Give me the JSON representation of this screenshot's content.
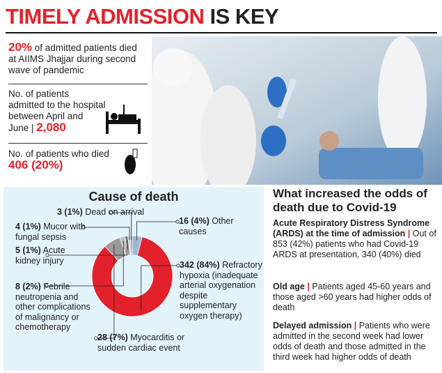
{
  "header": {
    "title_red": "TIMELY ADMISSION",
    "title_black": "IS KEY"
  },
  "stats": [
    {
      "value": "20%",
      "text": "of admitted patients died at AIIMS Jhajjar during second wave of pandemic"
    },
    {
      "text": "No. of patients admitted to the hospital between April and June",
      "value": "2,080"
    },
    {
      "text": "No. of patients who died",
      "value": "406 (20%)"
    }
  ],
  "chart_data": {
    "type": "donut",
    "title": "Cause of death",
    "categories": [
      "Other causes",
      "Refractory hypoxia (inadequate arterial oxygenation despite supplementary oxygen therapy)",
      "Myocarditis or sudden cardiac event",
      "Febrile neutropenia and other complications of malignancy or chemotherapy",
      "Acute kidney injury",
      "Mucor with fungal sepsis",
      "Dead on arrival"
    ],
    "values": [
      16,
      342,
      28,
      8,
      5,
      4,
      3
    ],
    "value_labels": [
      "16 (4%)",
      "342 (84%)",
      "28 (7%)",
      "8 (2%)",
      "5 (1%)",
      "4 (1%)",
      "3 (1%)"
    ],
    "colors": [
      "#9fb8d8",
      "#e3212b",
      "#9a9a9a",
      "#bdbdbd",
      "#7d7d7d",
      "#cfcfcf",
      "#8a8a8a"
    ]
  },
  "findings": {
    "title": "What increased the odds of death due to Covid-19",
    "items": [
      {
        "lead": "Acute Respiratory Distress Syndrome (ARDS) at the time of admission",
        "text": "Out of 853 (42%) patients who had Covid-19 ARDS at presentation, 340 (40%) died"
      },
      {
        "lead": "Old age",
        "text": "Patients aged 45-60 years and those aged >60 years had higher odds of death"
      },
      {
        "lead": "Delayed admission",
        "text": "Patients who were admitted in the second week had lower odds of death and those admitted in the third week had higher odds of death"
      }
    ]
  }
}
